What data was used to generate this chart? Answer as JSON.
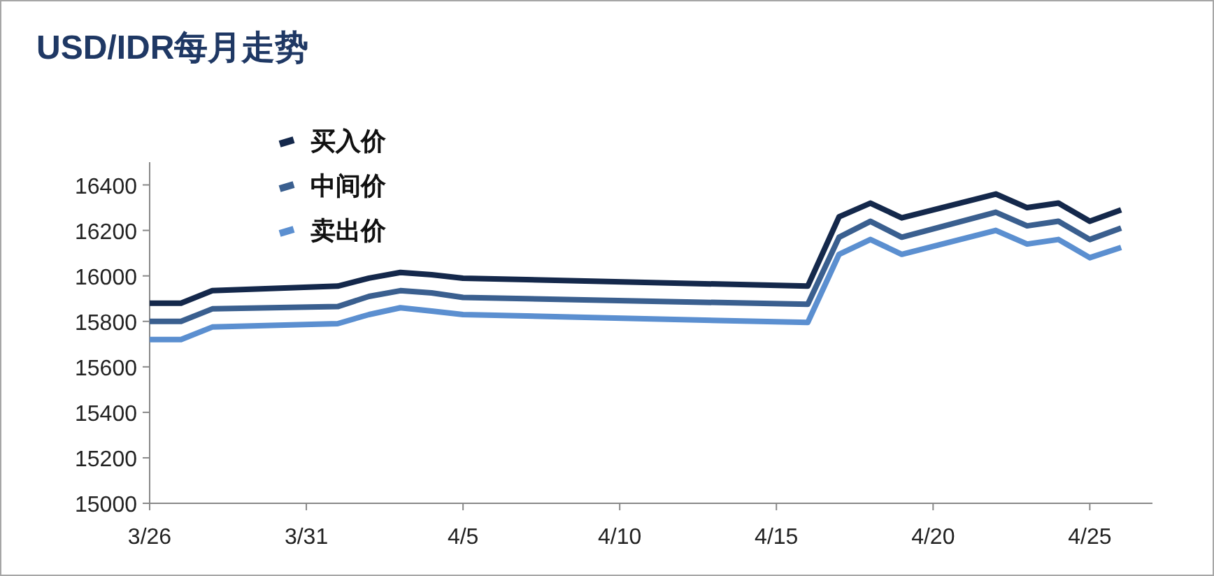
{
  "chart_data": {
    "type": "line",
    "title": "USD/IDR每月走势",
    "x": [
      "--03-26",
      "--03-27",
      "--03-28",
      "--04-01",
      "--04-02",
      "--04-03",
      "--04-04",
      "--04-05",
      "--04-16",
      "--04-17",
      "--04-18",
      "--04-19",
      "--04-22",
      "--04-23",
      "--04-24",
      "--04-25",
      "--04-26"
    ],
    "series": [
      {
        "name": "买入价",
        "color": "#14284b",
        "values": [
          15880,
          15880,
          15935,
          15955,
          15990,
          16015,
          16005,
          15990,
          15955,
          16260,
          16320,
          16255,
          16360,
          16300,
          16320,
          16240,
          16290
        ]
      },
      {
        "name": "中间价",
        "color": "#3a5f8f",
        "values": [
          15800,
          15800,
          15855,
          15865,
          15910,
          15935,
          15925,
          15905,
          15875,
          16170,
          16240,
          16170,
          16280,
          16220,
          16240,
          16160,
          16210
        ]
      },
      {
        "name": "卖出价",
        "color": "#5b8fd0",
        "values": [
          15720,
          15720,
          15775,
          15790,
          15830,
          15860,
          15845,
          15830,
          15795,
          16095,
          16160,
          16095,
          16200,
          16140,
          16160,
          16080,
          16125
        ]
      }
    ],
    "xlim": [
      "--03-26",
      "--04-27"
    ],
    "xticks": [
      {
        "value": "--03-26",
        "label": "3/26"
      },
      {
        "value": "--03-31",
        "label": "3/31"
      },
      {
        "value": "--04-05",
        "label": "4/5"
      },
      {
        "value": "--04-10",
        "label": "4/10"
      },
      {
        "value": "--04-15",
        "label": "4/15"
      },
      {
        "value": "--04-20",
        "label": "4/20"
      },
      {
        "value": "--04-25",
        "label": "4/25"
      }
    ],
    "ylim": [
      15000,
      16500
    ],
    "yticks": [
      15000,
      15200,
      15400,
      15600,
      15800,
      16000,
      16200,
      16400
    ],
    "legend": "top left",
    "marker": "none",
    "line_style": "solid"
  }
}
